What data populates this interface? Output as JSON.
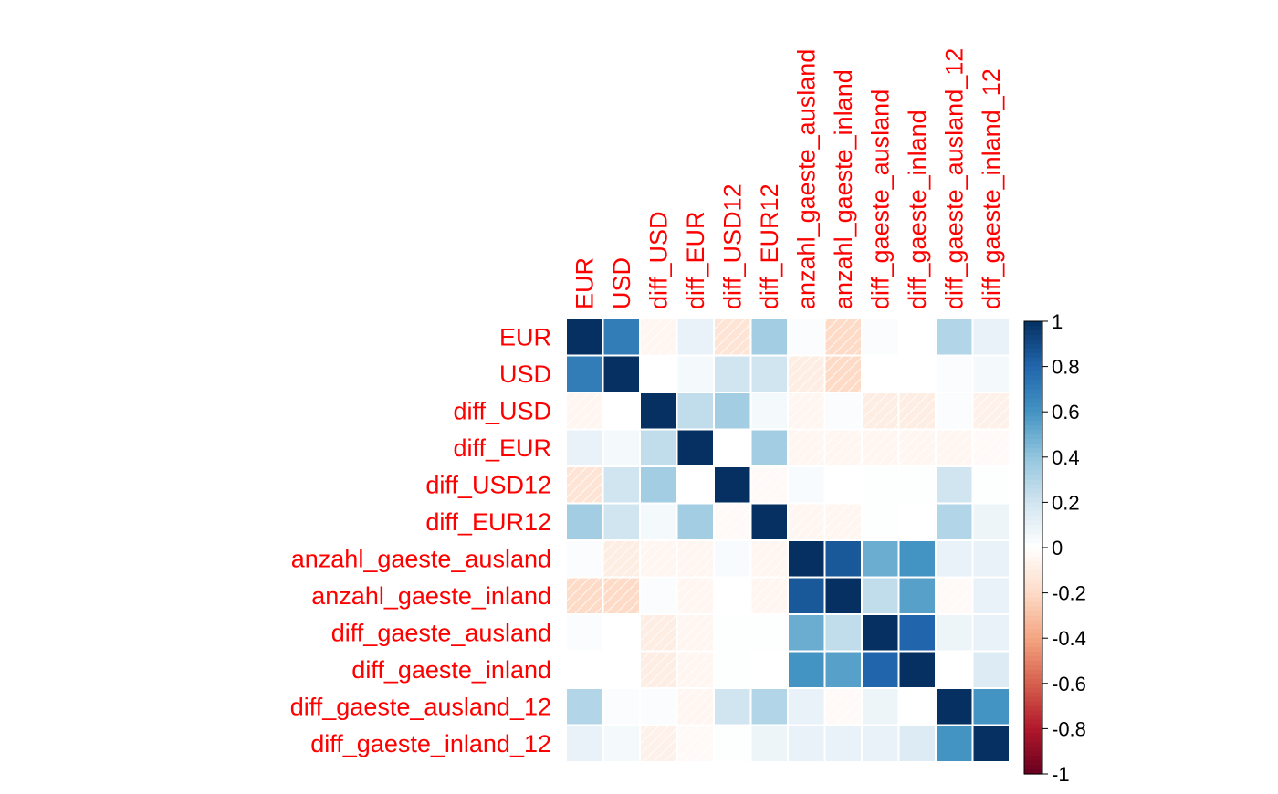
{
  "chart_data": {
    "type": "heatmap",
    "title": "",
    "variables": [
      "EUR",
      "USD",
      "diff_USD",
      "diff_EUR",
      "diff_USD12",
      "diff_EUR12",
      "anzahl_gaeste_ausland",
      "anzahl_gaeste_inland",
      "diff_gaeste_ausland",
      "diff_gaeste_inland",
      "diff_gaeste_ausland_12",
      "diff_gaeste_inland_12"
    ],
    "matrix": [
      [
        1.0,
        0.7,
        -0.05,
        0.1,
        -0.15,
        0.35,
        0.02,
        -0.2,
        0.02,
        0.0,
        0.3,
        0.1
      ],
      [
        0.7,
        1.0,
        0.0,
        0.05,
        0.2,
        0.2,
        -0.1,
        -0.2,
        0.0,
        0.0,
        0.02,
        0.05
      ],
      [
        -0.05,
        0.0,
        1.0,
        0.25,
        0.35,
        0.05,
        -0.05,
        0.02,
        -0.1,
        -0.1,
        0.02,
        -0.08
      ],
      [
        0.1,
        0.05,
        0.25,
        1.0,
        0.0,
        0.35,
        -0.05,
        -0.05,
        -0.05,
        -0.05,
        -0.05,
        -0.03
      ],
      [
        -0.15,
        0.2,
        0.35,
        0.0,
        1.0,
        -0.03,
        0.03,
        0.0,
        0.01,
        0.01,
        0.2,
        0.01
      ],
      [
        0.35,
        0.2,
        0.05,
        0.35,
        -0.03,
        1.0,
        -0.05,
        -0.05,
        0.01,
        0.0,
        0.3,
        0.08
      ],
      [
        0.02,
        -0.1,
        -0.05,
        -0.05,
        0.03,
        -0.05,
        1.0,
        0.85,
        0.5,
        0.6,
        0.1,
        0.1
      ],
      [
        -0.2,
        -0.2,
        0.02,
        -0.05,
        0.0,
        -0.05,
        0.85,
        1.0,
        0.25,
        0.55,
        -0.03,
        0.1
      ],
      [
        0.02,
        0.0,
        -0.1,
        -0.05,
        0.01,
        0.01,
        0.5,
        0.25,
        1.0,
        0.8,
        0.08,
        0.1
      ],
      [
        0.0,
        0.0,
        -0.1,
        -0.05,
        0.01,
        0.0,
        0.6,
        0.55,
        0.8,
        1.0,
        0.0,
        0.15
      ],
      [
        0.3,
        0.02,
        0.02,
        -0.05,
        0.2,
        0.3,
        0.1,
        -0.03,
        0.08,
        0.0,
        1.0,
        0.6
      ],
      [
        0.1,
        0.05,
        -0.08,
        -0.03,
        0.01,
        0.08,
        0.1,
        0.1,
        0.1,
        0.15,
        0.6,
        1.0
      ]
    ],
    "colorbar": {
      "ticks": [
        "1",
        "0.8",
        "0.6",
        "0.4",
        "0.2",
        "0",
        "-0.2",
        "-0.4",
        "-0.6",
        "-0.8",
        "-1"
      ],
      "range": [
        -1,
        1
      ]
    },
    "negative_cells_hatched": true,
    "label_color": "#ff0000"
  }
}
